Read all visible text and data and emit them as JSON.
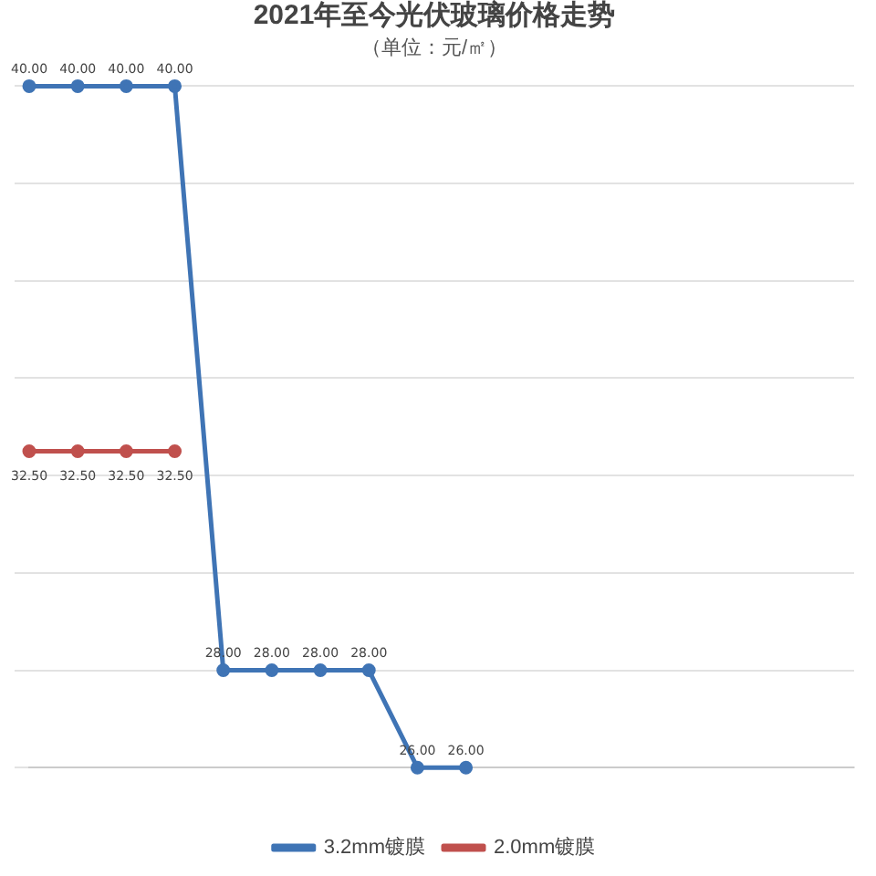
{
  "chart_data": {
    "type": "line",
    "title": "2021年至今光伏玻璃价格走势",
    "subtitle": "（单位：元/㎡）",
    "categories": [
      null,
      null,
      null,
      null,
      null,
      null,
      null,
      null,
      null,
      null,
      null,
      null,
      null,
      null,
      null,
      null,
      null,
      null
    ],
    "series": [
      {
        "name": "3.2mm镀膜",
        "color": "#3f74b5",
        "values": [
          40,
          40,
          40,
          40,
          28,
          28,
          28,
          28,
          26,
          26,
          null,
          null,
          null,
          null,
          null,
          null,
          null,
          null
        ],
        "value_labels": [
          "40.00",
          "40.00",
          "40.00",
          "40.00",
          "28.00",
          "28.00",
          "28.00",
          "28.00",
          "26.00",
          "26.00",
          null,
          null,
          null,
          null,
          null,
          null,
          null,
          null
        ]
      },
      {
        "name": "2.0mm镀膜",
        "color": "#c0504d",
        "values": [
          32.5,
          32.5,
          32.5,
          32.5,
          null,
          null,
          null,
          null,
          null,
          null,
          null,
          null,
          null,
          null,
          null,
          null,
          null,
          null
        ],
        "value_labels": [
          "32.50",
          "32.50",
          "32.50",
          "32.50",
          null,
          null,
          null,
          null,
          null,
          null,
          null,
          null,
          null,
          null,
          null,
          null,
          null,
          null
        ]
      }
    ],
    "grid": "y",
    "tick_labels": "x",
    "legend": "bottom",
    "marker": "circle",
    "line_style": "solid"
  }
}
